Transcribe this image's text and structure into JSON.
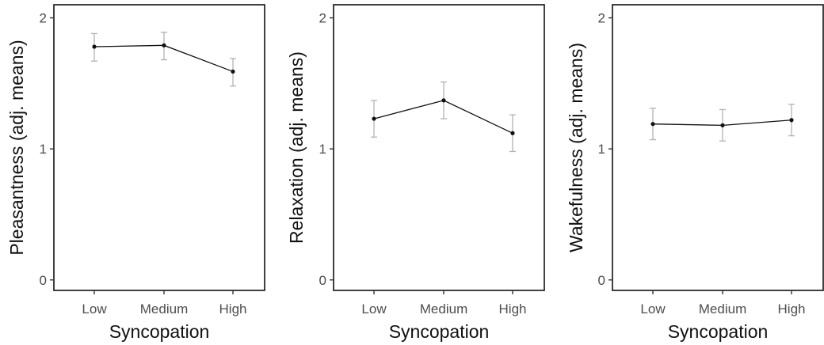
{
  "chart_data": [
    {
      "type": "line",
      "xlabel": "Syncopation",
      "ylabel": "Pleasantness (adj. means)",
      "categories": [
        "Low",
        "Medium",
        "High"
      ],
      "values": [
        1.78,
        1.79,
        1.59
      ],
      "error_low": [
        1.67,
        1.68,
        1.48
      ],
      "error_high": [
        1.88,
        1.89,
        1.69
      ],
      "ylim": [
        -0.08,
        2.1
      ],
      "yticks": [
        0,
        1,
        2
      ],
      "grid": false
    },
    {
      "type": "line",
      "xlabel": "Syncopation",
      "ylabel": "Relaxation (adj. means)",
      "categories": [
        "Low",
        "Medium",
        "High"
      ],
      "values": [
        1.23,
        1.37,
        1.12
      ],
      "error_low": [
        1.09,
        1.23,
        0.98
      ],
      "error_high": [
        1.37,
        1.51,
        1.26
      ],
      "ylim": [
        -0.08,
        2.1
      ],
      "yticks": [
        0,
        1,
        2
      ],
      "grid": false
    },
    {
      "type": "line",
      "xlabel": "Syncopation",
      "ylabel": "Wakefulness (adj. means)",
      "categories": [
        "Low",
        "Medium",
        "High"
      ],
      "values": [
        1.19,
        1.18,
        1.22
      ],
      "error_low": [
        1.07,
        1.06,
        1.1
      ],
      "error_high": [
        1.31,
        1.3,
        1.34
      ],
      "ylim": [
        -0.08,
        2.1
      ],
      "yticks": [
        0,
        1,
        2
      ],
      "grid": false
    }
  ],
  "colors": {
    "line": "#111111",
    "points": "#111111",
    "error_bars": "#b3b3b3",
    "tick_labels": "#4d4d4d"
  }
}
